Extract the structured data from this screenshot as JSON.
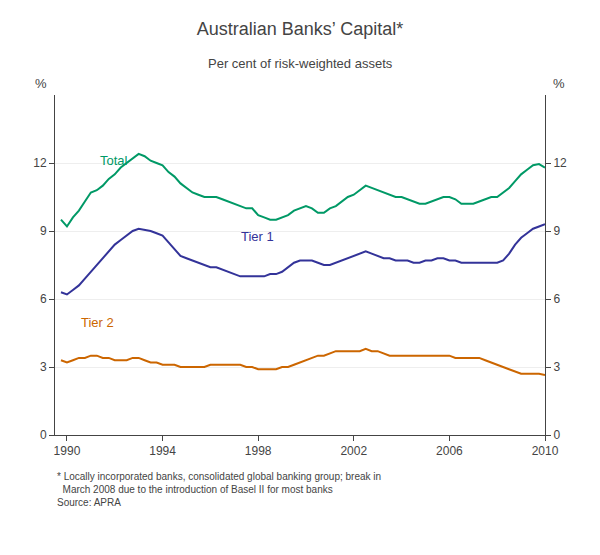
{
  "chart_data": {
    "type": "line",
    "title": "Australian Banks’ Capital*",
    "subtitle": "Per cent of risk-weighted assets",
    "ylabel": "%",
    "y2label": "%",
    "footnote": "* Locally incorporated banks, consolidated global banking group; break in\n  March 2008 due to the introduction of Basel II for most banks\nSource: APRA",
    "xlim": [
      1989.5,
      2010.0
    ],
    "xticks": [
      1990,
      1994,
      1998,
      2002,
      2006,
      2010
    ],
    "ylim": [
      0,
      15
    ],
    "yticks": [
      0,
      3,
      6,
      9,
      12
    ],
    "y2lim": [
      0,
      15
    ],
    "y2ticks": [
      0,
      3,
      6,
      9,
      12
    ],
    "grid": true,
    "x": [
      1989.75,
      1990.0,
      1990.25,
      1990.5,
      1990.75,
      1991.0,
      1991.25,
      1991.5,
      1991.75,
      1992.0,
      1992.25,
      1992.5,
      1992.75,
      1993.0,
      1993.25,
      1993.5,
      1993.75,
      1994.0,
      1994.25,
      1994.5,
      1994.75,
      1995.0,
      1995.25,
      1995.5,
      1995.75,
      1996.0,
      1996.25,
      1996.5,
      1996.75,
      1997.0,
      1997.25,
      1997.5,
      1997.75,
      1998.0,
      1998.25,
      1998.5,
      1998.75,
      1999.0,
      1999.25,
      1999.5,
      1999.75,
      2000.0,
      2000.25,
      2000.5,
      2000.75,
      2001.0,
      2001.25,
      2001.5,
      2001.75,
      2002.0,
      2002.25,
      2002.5,
      2002.75,
      2003.0,
      2003.25,
      2003.5,
      2003.75,
      2004.0,
      2004.25,
      2004.5,
      2004.75,
      2005.0,
      2005.25,
      2005.5,
      2005.75,
      2006.0,
      2006.25,
      2006.5,
      2006.75,
      2007.0,
      2007.25,
      2007.5,
      2007.75,
      2008.0,
      2008.25,
      2008.5,
      2008.75,
      2009.0,
      2009.25,
      2009.5,
      2009.75,
      2010.0
    ],
    "series": [
      {
        "name": "Total",
        "color": "#009966",
        "values": [
          9.5,
          9.2,
          9.6,
          9.9,
          10.3,
          10.7,
          10.8,
          11.0,
          11.3,
          11.5,
          11.8,
          12.0,
          12.2,
          12.4,
          12.3,
          12.1,
          12.0,
          11.9,
          11.6,
          11.4,
          11.1,
          10.9,
          10.7,
          10.6,
          10.5,
          10.5,
          10.5,
          10.4,
          10.3,
          10.2,
          10.1,
          10.0,
          10.0,
          9.7,
          9.6,
          9.5,
          9.5,
          9.6,
          9.7,
          9.9,
          10.0,
          10.1,
          10.0,
          9.8,
          9.8,
          10.0,
          10.1,
          10.3,
          10.5,
          10.6,
          10.8,
          11.0,
          10.9,
          10.8,
          10.7,
          10.6,
          10.5,
          10.5,
          10.4,
          10.3,
          10.2,
          10.2,
          10.3,
          10.4,
          10.5,
          10.5,
          10.4,
          10.2,
          10.2,
          10.2,
          10.3,
          10.4,
          10.5,
          10.5,
          10.7,
          10.9,
          11.2,
          11.5,
          11.7,
          11.9,
          11.95,
          11.8
        ]
      },
      {
        "name": "Tier 1",
        "color": "#333399",
        "values": [
          6.3,
          6.2,
          6.4,
          6.6,
          6.9,
          7.2,
          7.5,
          7.8,
          8.1,
          8.4,
          8.6,
          8.8,
          9.0,
          9.1,
          9.05,
          9.0,
          8.9,
          8.8,
          8.5,
          8.2,
          7.9,
          7.8,
          7.7,
          7.6,
          7.5,
          7.4,
          7.4,
          7.3,
          7.2,
          7.1,
          7.0,
          7.0,
          7.0,
          7.0,
          7.0,
          7.1,
          7.1,
          7.2,
          7.4,
          7.6,
          7.7,
          7.7,
          7.7,
          7.6,
          7.5,
          7.5,
          7.6,
          7.7,
          7.8,
          7.9,
          8.0,
          8.1,
          8.0,
          7.9,
          7.8,
          7.8,
          7.7,
          7.7,
          7.7,
          7.6,
          7.6,
          7.7,
          7.7,
          7.8,
          7.8,
          7.7,
          7.7,
          7.6,
          7.6,
          7.6,
          7.6,
          7.6,
          7.6,
          7.6,
          7.7,
          8.0,
          8.4,
          8.7,
          8.9,
          9.1,
          9.2,
          9.3
        ]
      },
      {
        "name": "Tier 2",
        "color": "#CC6600",
        "values": [
          3.3,
          3.2,
          3.3,
          3.4,
          3.4,
          3.5,
          3.5,
          3.4,
          3.4,
          3.3,
          3.3,
          3.3,
          3.4,
          3.4,
          3.3,
          3.2,
          3.2,
          3.1,
          3.1,
          3.1,
          3.0,
          3.0,
          3.0,
          3.0,
          3.0,
          3.1,
          3.1,
          3.1,
          3.1,
          3.1,
          3.1,
          3.0,
          3.0,
          2.9,
          2.9,
          2.9,
          2.9,
          3.0,
          3.0,
          3.1,
          3.2,
          3.3,
          3.4,
          3.5,
          3.5,
          3.6,
          3.7,
          3.7,
          3.7,
          3.7,
          3.7,
          3.8,
          3.7,
          3.7,
          3.6,
          3.5,
          3.5,
          3.5,
          3.5,
          3.5,
          3.5,
          3.5,
          3.5,
          3.5,
          3.5,
          3.5,
          3.4,
          3.4,
          3.4,
          3.4,
          3.4,
          3.3,
          3.2,
          3.1,
          3.0,
          2.9,
          2.8,
          2.7,
          2.7,
          2.7,
          2.7,
          2.65
        ]
      }
    ]
  }
}
